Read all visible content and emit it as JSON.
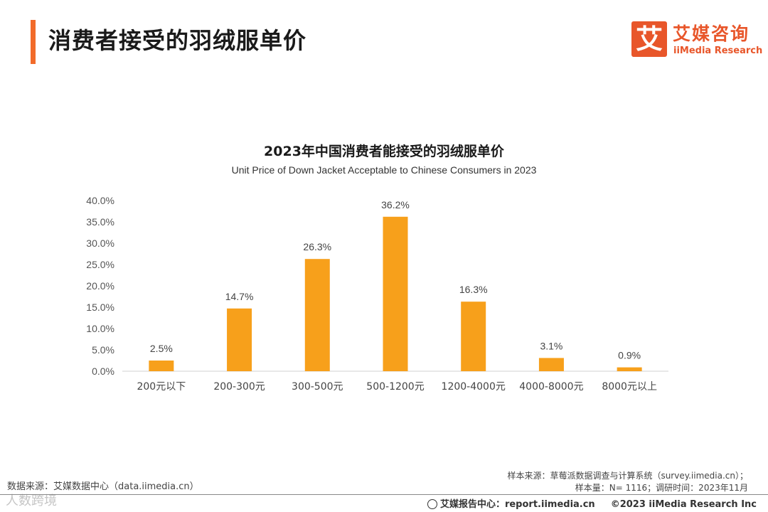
{
  "header": {
    "title": "消费者接受的羽绒服单价",
    "accent_color": "#f26b2a"
  },
  "logo": {
    "mark": "艾",
    "cn": "艾媒咨询",
    "en": "iiMedia Research",
    "color": "#e8562a"
  },
  "chart_data": {
    "type": "bar",
    "title": "2023年中国消费者能接受的羽绒服单价",
    "subtitle": "Unit Price of Down Jacket Acceptable to Chinese Consumers in 2023",
    "categories": [
      "200元以下",
      "200-300元",
      "300-500元",
      "500-1200元",
      "1200-4000元",
      "4000-8000元",
      "8000元以上"
    ],
    "values": [
      2.5,
      14.7,
      26.3,
      36.2,
      16.3,
      3.1,
      0.9
    ],
    "value_labels": [
      "2.5%",
      "14.7%",
      "26.3%",
      "36.2%",
      "16.3%",
      "3.1%",
      "0.9%"
    ],
    "ylim": [
      0,
      40
    ],
    "y_ticks": [
      "0.0%",
      "5.0%",
      "10.0%",
      "15.0%",
      "20.0%",
      "25.0%",
      "30.0%",
      "35.0%",
      "40.0%"
    ],
    "bar_color": "#f7a01b",
    "grid": false,
    "legend": "none"
  },
  "notes": {
    "sample_source": "样本来源：草莓派数据调查与计算系统（survey.iimedia.cn）；",
    "sample_size": "样本量：N= 1116；调研时间：2023年11月",
    "data_source": "数据来源：艾媒数据中心（data.iimedia.cn）"
  },
  "watermark": "人数跨境",
  "footer": {
    "report_center": "艾媒报告中心：report.iimedia.cn",
    "copyright": "©2023  iiMedia Research  Inc"
  }
}
